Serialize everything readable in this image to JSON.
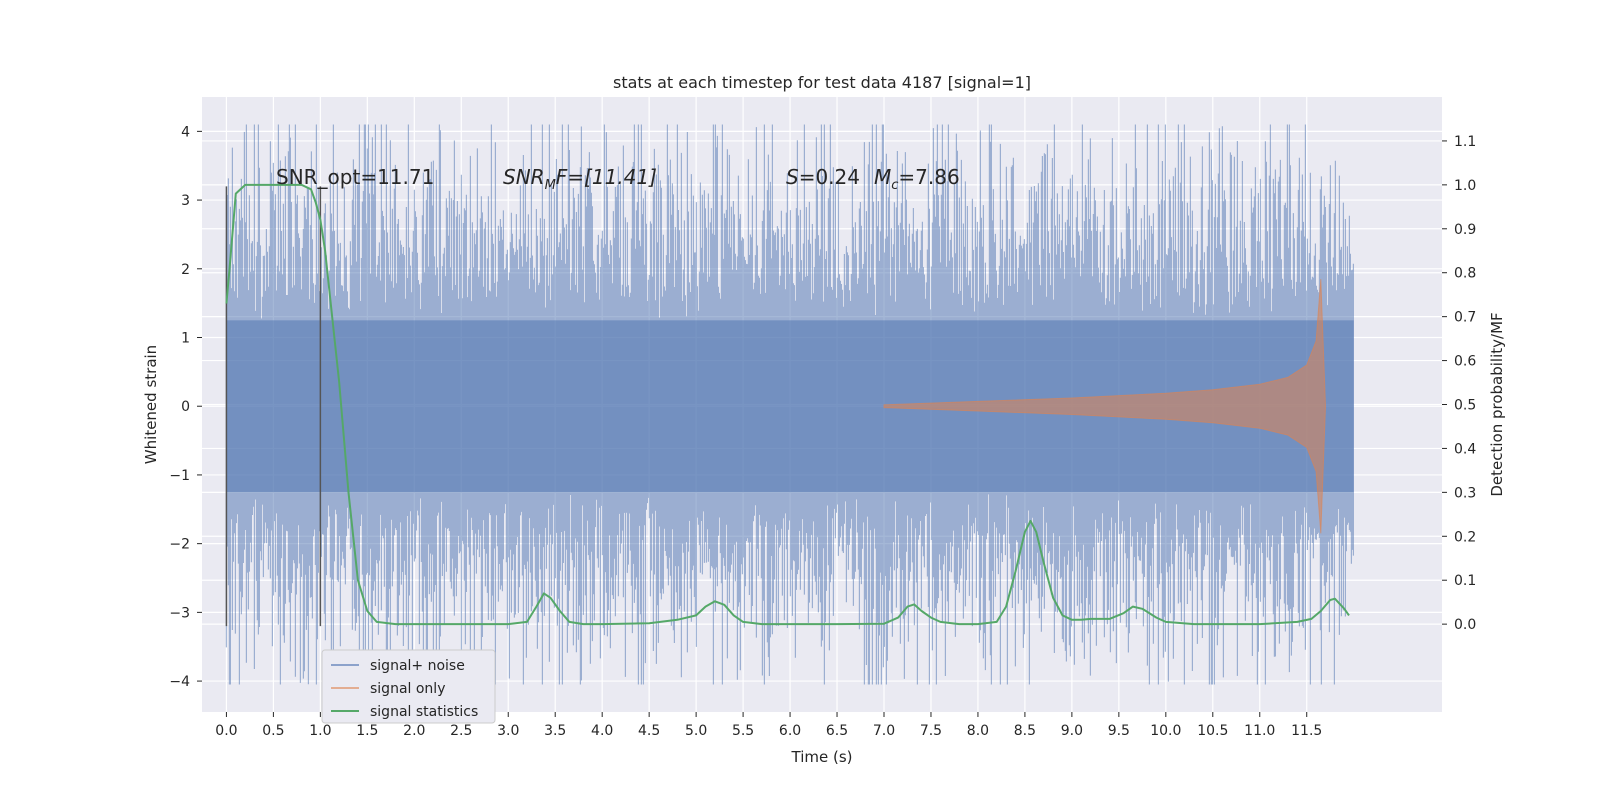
{
  "chart_data": {
    "type": "line",
    "title": "stats at each timestep for test data 4187 [signal=1]",
    "xlabel": "Time (s)",
    "ylabel": "Whitened strain",
    "y2label": "Detection probability/MF",
    "xlim": [
      -0.26,
      12.94
    ],
    "ylim": [
      -4.45,
      4.5
    ],
    "y2lim": [
      -0.2,
      1.2
    ],
    "x_ticks": [
      "0.0",
      "0.5",
      "1.0",
      "1.5",
      "2.0",
      "2.5",
      "3.0",
      "3.5",
      "4.0",
      "4.5",
      "5.0",
      "5.5",
      "6.0",
      "6.5",
      "7.0",
      "7.5",
      "8.0",
      "8.5",
      "9.0",
      "9.5",
      "10.0",
      "10.5",
      "11.0",
      "11.5"
    ],
    "y_ticks": [
      "4",
      "3",
      "2",
      "1",
      "0",
      "−1",
      "−2",
      "−3",
      "−4"
    ],
    "y2_ticks": [
      "1.1",
      "1.0",
      "0.9",
      "0.8",
      "0.7",
      "0.6",
      "0.5",
      "0.4",
      "0.3",
      "0.2",
      "0.1",
      "0.0"
    ],
    "grid": true,
    "legend_position": "lower-left",
    "annotations": {
      "snr_opt": "SNR_opt=11.71",
      "snr_mf_sym": "SNR",
      "snr_mf_sub": "M",
      "snr_mf_rest": "F=[11.41]",
      "s_sym": "S",
      "s_val": "=0.24",
      "mc_sym": "M",
      "mc_sub": "c",
      "mc_val": "=7.86"
    },
    "markers": {
      "vertical_lines_x": [
        0.0,
        1.0
      ],
      "vertical_lines_range": [
        -3.2,
        3.2
      ]
    },
    "series": [
      {
        "name": "signal+ noise",
        "color": "#4c72b0",
        "style": "noise band",
        "x_range": [
          0.0,
          12.0
        ],
        "envelope": {
          "typical_abs": 2.2,
          "min": -4.05,
          "max": 4.1
        }
      },
      {
        "name": "signal only",
        "color": "#dd8452",
        "style": "chirp",
        "x": [
          7.0,
          8.0,
          9.0,
          10.0,
          10.5,
          11.0,
          11.3,
          11.5,
          11.6,
          11.65,
          11.7
        ],
        "amplitude": [
          0.02,
          0.07,
          0.12,
          0.19,
          0.24,
          0.32,
          0.42,
          0.6,
          0.95,
          1.85,
          0.0
        ]
      },
      {
        "name": "signal statistics",
        "color": "#55a868",
        "style": "line",
        "x": [
          0.0,
          0.03,
          0.1,
          0.2,
          0.5,
          0.8,
          0.9,
          0.95,
          1.0,
          1.05,
          1.1,
          1.2,
          1.3,
          1.4,
          1.5,
          1.6,
          1.8,
          2.0,
          2.5,
          3.0,
          3.2,
          3.3,
          3.38,
          3.45,
          3.55,
          3.65,
          3.8,
          4.0,
          4.5,
          4.8,
          5.0,
          5.1,
          5.2,
          5.3,
          5.4,
          5.5,
          5.7,
          6.0,
          6.5,
          7.0,
          7.15,
          7.25,
          7.32,
          7.4,
          7.5,
          7.6,
          7.8,
          8.0,
          8.2,
          8.3,
          8.4,
          8.5,
          8.56,
          8.62,
          8.7,
          8.8,
          8.9,
          9.0,
          9.1,
          9.2,
          9.4,
          9.55,
          9.65,
          9.75,
          9.9,
          10.0,
          10.3,
          10.6,
          11.0,
          11.4,
          11.55,
          11.65,
          11.75,
          11.8,
          11.9,
          11.95
        ],
        "values": [
          0.73,
          0.8,
          0.98,
          1.0,
          1.0,
          1.0,
          0.99,
          0.96,
          0.92,
          0.85,
          0.75,
          0.55,
          0.3,
          0.1,
          0.03,
          0.005,
          0.0,
          0.0,
          0.0,
          0.0,
          0.005,
          0.04,
          0.07,
          0.06,
          0.03,
          0.005,
          0.0,
          0.0,
          0.002,
          0.01,
          0.02,
          0.04,
          0.052,
          0.044,
          0.02,
          0.005,
          0.0,
          0.0,
          0.0,
          0.001,
          0.015,
          0.04,
          0.045,
          0.03,
          0.015,
          0.005,
          0.0,
          0.0,
          0.005,
          0.04,
          0.12,
          0.21,
          0.235,
          0.21,
          0.14,
          0.06,
          0.02,
          0.01,
          0.01,
          0.012,
          0.012,
          0.025,
          0.04,
          0.035,
          0.015,
          0.005,
          0.0,
          0.0,
          0.0,
          0.005,
          0.012,
          0.03,
          0.055,
          0.058,
          0.035,
          0.02
        ]
      }
    ]
  }
}
